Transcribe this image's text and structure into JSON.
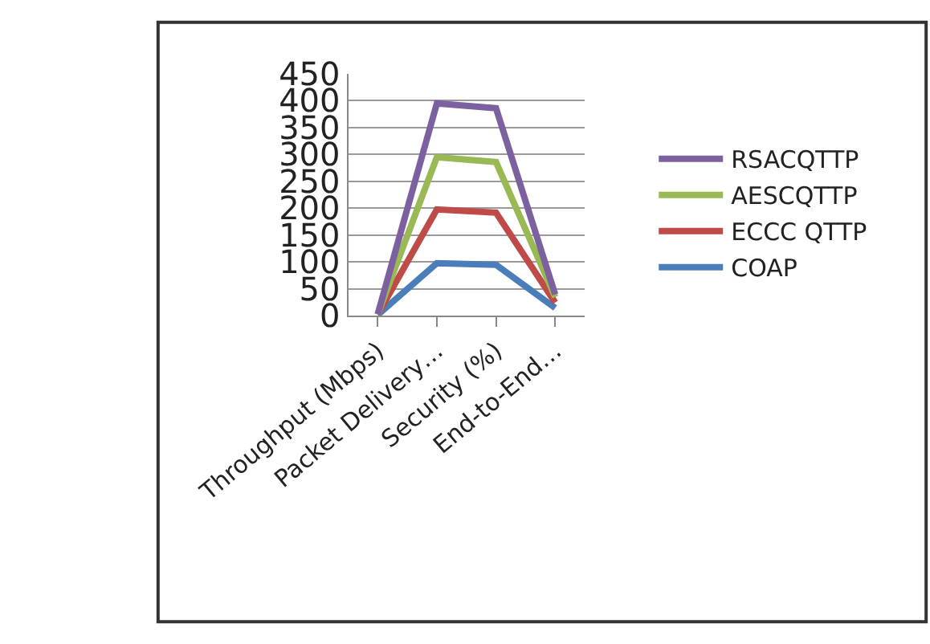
{
  "chart_data": {
    "type": "line",
    "categories": [
      "Throughput (Mbps)",
      "Packet Delivery…",
      "Security (%)",
      "End-to-End…"
    ],
    "series": [
      {
        "name": "COAP",
        "color": "#4a7ebb",
        "values": [
          2,
          98,
          95,
          15
        ]
      },
      {
        "name": "ECCC QTTP",
        "color": "#be4b48",
        "values": [
          3,
          198,
          192,
          25
        ]
      },
      {
        "name": "AESCQTTP",
        "color": "#98b954",
        "values": [
          3,
          295,
          286,
          35
        ]
      },
      {
        "name": "RSACQTTP",
        "color": "#7d60a0",
        "values": [
          3,
          395,
          386,
          40
        ]
      }
    ],
    "ylim": [
      0,
      450
    ],
    "yticks": [
      0,
      50,
      100,
      150,
      200,
      250,
      300,
      350,
      400,
      450
    ],
    "grid": "y",
    "legend": "right",
    "marker": "none",
    "line_style": "solid"
  }
}
